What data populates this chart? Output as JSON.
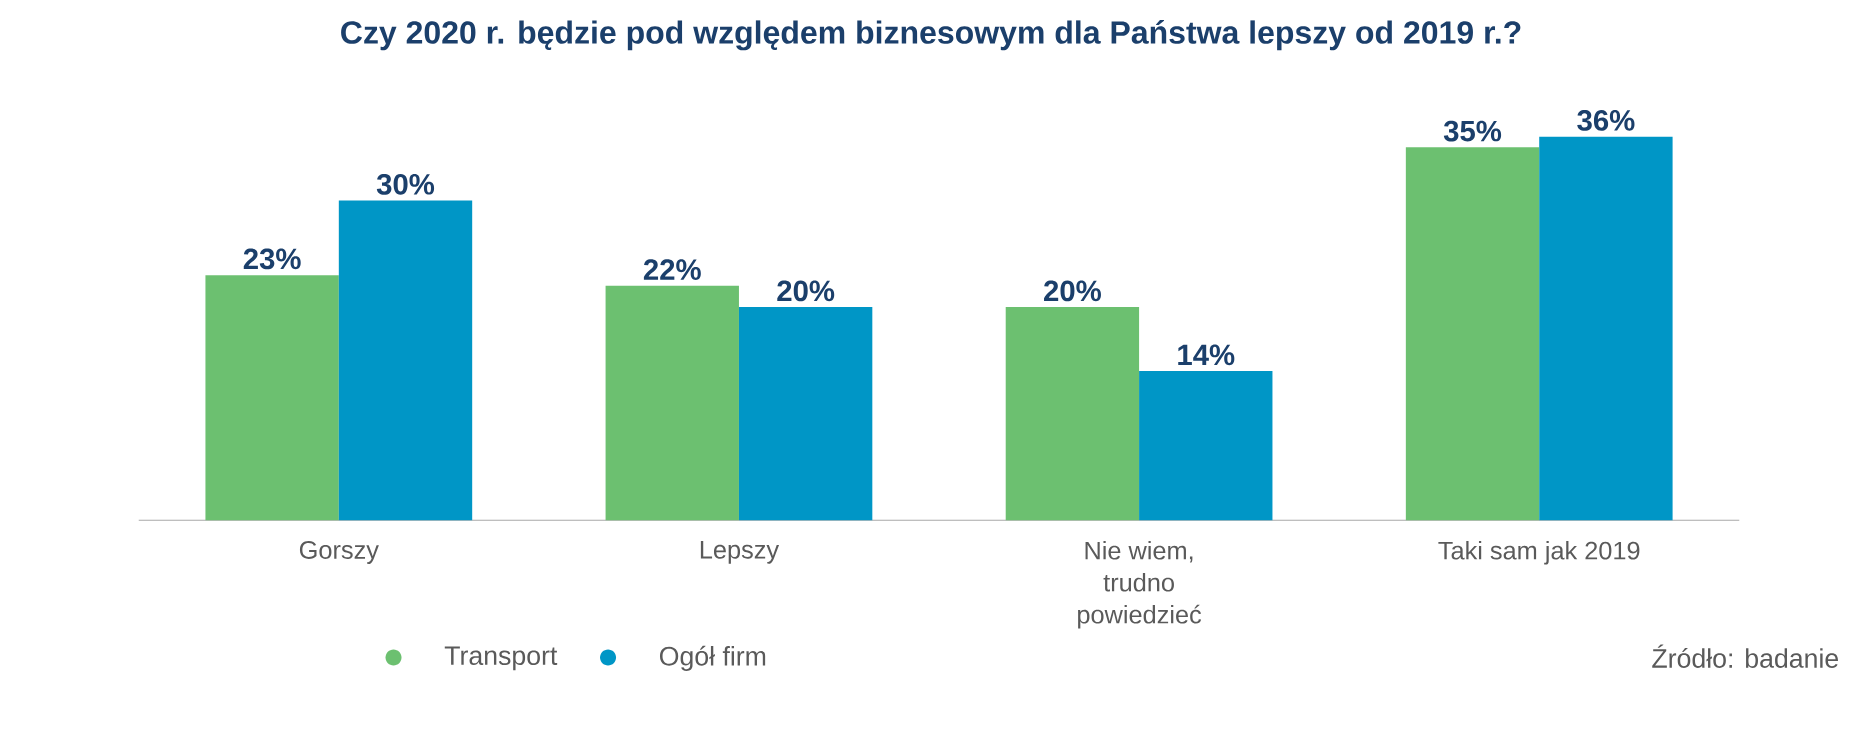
{
  "chart_data": {
    "type": "bar",
    "title": "Czy 2020 r. będzie pod względem biznesowym dla Państwa lepszy od 2019 r.?",
    "categories": [
      "Gorszy",
      "Lepszy",
      "Nie wiem, trudno powiedzieć",
      "Taki sam jak 2019"
    ],
    "series": [
      {
        "name": "Transport",
        "color": "#6cc070",
        "values": [
          23,
          22,
          20,
          35
        ],
        "value_labels": [
          "23%",
          "22%",
          "20%",
          "35%"
        ]
      },
      {
        "name": "Ogół firm",
        "color": "#0096c6",
        "values": [
          30,
          20,
          14,
          36
        ],
        "value_labels": [
          "30%",
          "20%",
          "14%",
          "36%"
        ]
      }
    ],
    "legend": "bottom",
    "annotations": [
      "Źródło: badanie"
    ]
  }
}
